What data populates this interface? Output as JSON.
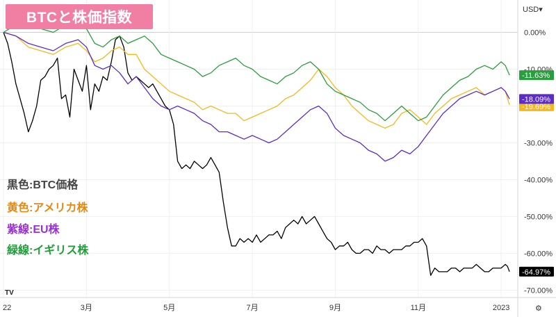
{
  "title": "BTCと株価指数",
  "currency_label": "USD",
  "legend_notes": [
    {
      "text": "黒色:BTC価格",
      "color": "#444444"
    },
    {
      "text": "黄色:アメリカ株",
      "color": "#e8880c"
    },
    {
      "text": "紫線:EU株",
      "color": "#9a2fd8"
    },
    {
      "text": "緑線:イギリス株",
      "color": "#1f9e3a"
    }
  ],
  "chart_data": {
    "type": "line",
    "title": "BTCと株価指数",
    "ylabel": "USD",
    "y_unit": "%",
    "ylim": [
      -72,
      5
    ],
    "y_ticks": [
      "0.00%",
      "-10.00%",
      "-20.00%",
      "-30.00%",
      "-40.00%",
      "-50.00%",
      "-60.00%",
      "-70.00%"
    ],
    "y_tick_values": [
      0,
      -10,
      -20,
      -30,
      -40,
      -50,
      -60,
      -70
    ],
    "x_ticks": [
      "22",
      "3月",
      "5月",
      "7月",
      "9月",
      "11月",
      "2023"
    ],
    "x_tick_months": [
      0,
      2,
      4,
      6,
      8,
      10,
      12
    ],
    "x_range_months": [
      0,
      12.4
    ],
    "grid": true,
    "series": [
      {
        "name": "黒色:BTC価格",
        "color": "#000000",
        "last_label": "-64.97%",
        "points": [
          [
            0,
            0
          ],
          [
            0.1,
            -3
          ],
          [
            0.2,
            -8
          ],
          [
            0.3,
            -14
          ],
          [
            0.4,
            -18
          ],
          [
            0.5,
            -22
          ],
          [
            0.6,
            -27
          ],
          [
            0.7,
            -24
          ],
          [
            0.8,
            -20
          ],
          [
            0.9,
            -13
          ],
          [
            1.0,
            -12
          ],
          [
            1.1,
            -10
          ],
          [
            1.2,
            -9
          ],
          [
            1.3,
            -7
          ],
          [
            1.4,
            -18
          ],
          [
            1.5,
            -17
          ],
          [
            1.6,
            -23
          ],
          [
            1.7,
            -10
          ],
          [
            1.8,
            -13
          ],
          [
            1.9,
            -16
          ],
          [
            2.0,
            -9
          ],
          [
            2.1,
            -21
          ],
          [
            2.2,
            -14
          ],
          [
            2.3,
            -16
          ],
          [
            2.4,
            -12
          ],
          [
            2.5,
            -13
          ],
          [
            2.6,
            -8
          ],
          [
            2.7,
            -2
          ],
          [
            2.8,
            -1
          ],
          [
            2.9,
            -4
          ],
          [
            3.0,
            -11
          ],
          [
            3.1,
            -13
          ],
          [
            3.2,
            -12
          ],
          [
            3.3,
            -13
          ],
          [
            3.4,
            -14
          ],
          [
            3.5,
            -15
          ],
          [
            3.6,
            -14
          ],
          [
            3.7,
            -16
          ],
          [
            3.8,
            -18
          ],
          [
            3.9,
            -20
          ],
          [
            4.0,
            -21
          ],
          [
            4.1,
            -25
          ],
          [
            4.2,
            -35
          ],
          [
            4.3,
            -37
          ],
          [
            4.4,
            -36
          ],
          [
            4.5,
            -37
          ],
          [
            4.6,
            -35
          ],
          [
            4.7,
            -36
          ],
          [
            4.8,
            -37
          ],
          [
            4.9,
            -36
          ],
          [
            5.0,
            -34
          ],
          [
            5.1,
            -36
          ],
          [
            5.2,
            -38
          ],
          [
            5.3,
            -46
          ],
          [
            5.4,
            -53
          ],
          [
            5.5,
            -58
          ],
          [
            5.6,
            -58
          ],
          [
            5.7,
            -56
          ],
          [
            5.8,
            -57
          ],
          [
            5.9,
            -56
          ],
          [
            6.0,
            -57
          ],
          [
            6.1,
            -55
          ],
          [
            6.2,
            -57
          ],
          [
            6.3,
            -56
          ],
          [
            6.4,
            -55
          ],
          [
            6.5,
            -55
          ],
          [
            6.6,
            -54
          ],
          [
            6.7,
            -56
          ],
          [
            6.8,
            -53
          ],
          [
            6.9,
            -52
          ],
          [
            7.0,
            -51
          ],
          [
            7.1,
            -52
          ],
          [
            7.2,
            -50
          ],
          [
            7.3,
            -52
          ],
          [
            7.4,
            -51
          ],
          [
            7.5,
            -50
          ],
          [
            7.6,
            -52
          ],
          [
            7.7,
            -54
          ],
          [
            7.8,
            -56
          ],
          [
            7.9,
            -57
          ],
          [
            8.0,
            -59
          ],
          [
            8.1,
            -58
          ],
          [
            8.2,
            -58
          ],
          [
            8.3,
            -57
          ],
          [
            8.4,
            -59
          ],
          [
            8.5,
            -60
          ],
          [
            8.6,
            -60
          ],
          [
            8.7,
            -59
          ],
          [
            8.8,
            -59
          ],
          [
            8.9,
            -60
          ],
          [
            9.0,
            -58
          ],
          [
            9.1,
            -59
          ],
          [
            9.2,
            -59
          ],
          [
            9.3,
            -60
          ],
          [
            9.4,
            -59
          ],
          [
            9.5,
            -59
          ],
          [
            9.6,
            -59
          ],
          [
            9.7,
            -58
          ],
          [
            9.8,
            -58
          ],
          [
            9.9,
            -57
          ],
          [
            10.0,
            -57
          ],
          [
            10.1,
            -56
          ],
          [
            10.2,
            -58
          ],
          [
            10.3,
            -66
          ],
          [
            10.4,
            -64
          ],
          [
            10.5,
            -65
          ],
          [
            10.6,
            -65
          ],
          [
            10.7,
            -65
          ],
          [
            10.8,
            -64
          ],
          [
            10.9,
            -64
          ],
          [
            11.0,
            -65
          ],
          [
            11.1,
            -64
          ],
          [
            11.2,
            -64
          ],
          [
            11.3,
            -64
          ],
          [
            11.4,
            -63
          ],
          [
            11.5,
            -64
          ],
          [
            11.6,
            -65
          ],
          [
            11.7,
            -65
          ],
          [
            11.8,
            -64
          ],
          [
            11.9,
            -64
          ],
          [
            12.0,
            -64
          ],
          [
            12.1,
            -63
          ],
          [
            12.15,
            -63.5
          ],
          [
            12.2,
            -64.97
          ]
        ]
      },
      {
        "name": "黄色:アメリカ株",
        "color": "#f5b81c",
        "last_label": "-19.69%",
        "points": [
          [
            0,
            0
          ],
          [
            0.3,
            -1
          ],
          [
            0.6,
            -4
          ],
          [
            0.9,
            -5
          ],
          [
            1.2,
            -6
          ],
          [
            1.5,
            -4
          ],
          [
            1.8,
            -3
          ],
          [
            2.0,
            -5
          ],
          [
            2.2,
            -8
          ],
          [
            2.4,
            -7
          ],
          [
            2.6,
            -5
          ],
          [
            2.8,
            -4
          ],
          [
            3.0,
            -6
          ],
          [
            3.2,
            -6
          ],
          [
            3.4,
            -10
          ],
          [
            3.6,
            -12
          ],
          [
            3.8,
            -14
          ],
          [
            4.0,
            -16
          ],
          [
            4.2,
            -17
          ],
          [
            4.4,
            -18
          ],
          [
            4.6,
            -19
          ],
          [
            4.8,
            -21
          ],
          [
            5.0,
            -20
          ],
          [
            5.2,
            -21
          ],
          [
            5.4,
            -22
          ],
          [
            5.6,
            -22
          ],
          [
            5.8,
            -24
          ],
          [
            6.0,
            -23
          ],
          [
            6.2,
            -22
          ],
          [
            6.4,
            -21
          ],
          [
            6.6,
            -20
          ],
          [
            6.8,
            -18
          ],
          [
            7.0,
            -17
          ],
          [
            7.2,
            -15
          ],
          [
            7.4,
            -13
          ],
          [
            7.6,
            -10
          ],
          [
            7.8,
            -12
          ],
          [
            8.0,
            -15
          ],
          [
            8.2,
            -17
          ],
          [
            8.4,
            -20
          ],
          [
            8.6,
            -22
          ],
          [
            8.8,
            -24
          ],
          [
            9.0,
            -25
          ],
          [
            9.2,
            -26
          ],
          [
            9.4,
            -25
          ],
          [
            9.6,
            -22
          ],
          [
            9.8,
            -21
          ],
          [
            10.0,
            -23
          ],
          [
            10.2,
            -25
          ],
          [
            10.4,
            -22
          ],
          [
            10.6,
            -20
          ],
          [
            10.8,
            -18
          ],
          [
            11.0,
            -17
          ],
          [
            11.2,
            -16
          ],
          [
            11.4,
            -15
          ],
          [
            11.6,
            -17
          ],
          [
            11.8,
            -16
          ],
          [
            12.0,
            -15
          ],
          [
            12.1,
            -16
          ],
          [
            12.2,
            -19.69
          ]
        ]
      },
      {
        "name": "紫線:EU株",
        "color": "#5b2dc4",
        "last_label": "-18.09%",
        "points": [
          [
            0,
            0
          ],
          [
            0.3,
            -1
          ],
          [
            0.6,
            -3
          ],
          [
            0.9,
            -4
          ],
          [
            1.2,
            -5
          ],
          [
            1.5,
            -3
          ],
          [
            1.8,
            -2
          ],
          [
            2.0,
            -4
          ],
          [
            2.2,
            -9
          ],
          [
            2.4,
            -10
          ],
          [
            2.6,
            -9
          ],
          [
            2.8,
            -11
          ],
          [
            3.0,
            -14
          ],
          [
            3.2,
            -12
          ],
          [
            3.4,
            -15
          ],
          [
            3.6,
            -18
          ],
          [
            3.8,
            -20
          ],
          [
            4.0,
            -21
          ],
          [
            4.2,
            -20
          ],
          [
            4.4,
            -21
          ],
          [
            4.6,
            -22
          ],
          [
            4.8,
            -24
          ],
          [
            5.0,
            -25
          ],
          [
            5.2,
            -27
          ],
          [
            5.4,
            -27
          ],
          [
            5.6,
            -28
          ],
          [
            5.8,
            -29
          ],
          [
            6.0,
            -28
          ],
          [
            6.2,
            -29
          ],
          [
            6.4,
            -30
          ],
          [
            6.6,
            -29
          ],
          [
            6.8,
            -27
          ],
          [
            7.0,
            -25
          ],
          [
            7.2,
            -23
          ],
          [
            7.4,
            -21
          ],
          [
            7.6,
            -20
          ],
          [
            7.8,
            -22
          ],
          [
            8.0,
            -26
          ],
          [
            8.2,
            -28
          ],
          [
            8.4,
            -29
          ],
          [
            8.6,
            -30
          ],
          [
            8.8,
            -32
          ],
          [
            9.0,
            -33
          ],
          [
            9.2,
            -35
          ],
          [
            9.4,
            -34
          ],
          [
            9.6,
            -32
          ],
          [
            9.8,
            -33
          ],
          [
            10.0,
            -31
          ],
          [
            10.2,
            -28
          ],
          [
            10.4,
            -25
          ],
          [
            10.6,
            -22
          ],
          [
            10.8,
            -20
          ],
          [
            11.0,
            -18
          ],
          [
            11.2,
            -17
          ],
          [
            11.4,
            -16
          ],
          [
            11.6,
            -17
          ],
          [
            11.8,
            -16
          ],
          [
            12.0,
            -15
          ],
          [
            12.1,
            -16
          ],
          [
            12.2,
            -18.09
          ]
        ]
      },
      {
        "name": "緑線:イギリス株",
        "color": "#2a9d3e",
        "last_label": "-11.63%",
        "points": [
          [
            0,
            0
          ],
          [
            0.3,
            2
          ],
          [
            0.6,
            3
          ],
          [
            0.9,
            1
          ],
          [
            1.2,
            0
          ],
          [
            1.5,
            2
          ],
          [
            1.8,
            3
          ],
          [
            2.0,
            1
          ],
          [
            2.2,
            -3
          ],
          [
            2.4,
            -4
          ],
          [
            2.6,
            -2
          ],
          [
            2.8,
            -1
          ],
          [
            3.0,
            -3
          ],
          [
            3.2,
            -2
          ],
          [
            3.4,
            -1
          ],
          [
            3.6,
            -3
          ],
          [
            3.8,
            -6
          ],
          [
            4.0,
            -7
          ],
          [
            4.2,
            -8
          ],
          [
            4.4,
            -9
          ],
          [
            4.6,
            -10
          ],
          [
            4.8,
            -12
          ],
          [
            5.0,
            -11
          ],
          [
            5.2,
            -9
          ],
          [
            5.4,
            -8
          ],
          [
            5.6,
            -7
          ],
          [
            5.8,
            -9
          ],
          [
            6.0,
            -10
          ],
          [
            6.2,
            -12
          ],
          [
            6.4,
            -13
          ],
          [
            6.6,
            -14
          ],
          [
            6.8,
            -12
          ],
          [
            7.0,
            -11
          ],
          [
            7.2,
            -9
          ],
          [
            7.4,
            -8
          ],
          [
            7.6,
            -10
          ],
          [
            7.8,
            -14
          ],
          [
            8.0,
            -16
          ],
          [
            8.2,
            -17
          ],
          [
            8.4,
            -18
          ],
          [
            8.6,
            -19
          ],
          [
            8.8,
            -21
          ],
          [
            9.0,
            -22
          ],
          [
            9.2,
            -24
          ],
          [
            9.4,
            -22
          ],
          [
            9.6,
            -20
          ],
          [
            9.8,
            -22
          ],
          [
            10.0,
            -24
          ],
          [
            10.2,
            -23
          ],
          [
            10.4,
            -20
          ],
          [
            10.6,
            -17
          ],
          [
            10.8,
            -15
          ],
          [
            11.0,
            -13
          ],
          [
            11.2,
            -12
          ],
          [
            11.4,
            -10
          ],
          [
            11.6,
            -9
          ],
          [
            11.8,
            -10
          ],
          [
            12.0,
            -8
          ],
          [
            12.1,
            -9
          ],
          [
            12.2,
            -11.63
          ]
        ]
      }
    ]
  }
}
